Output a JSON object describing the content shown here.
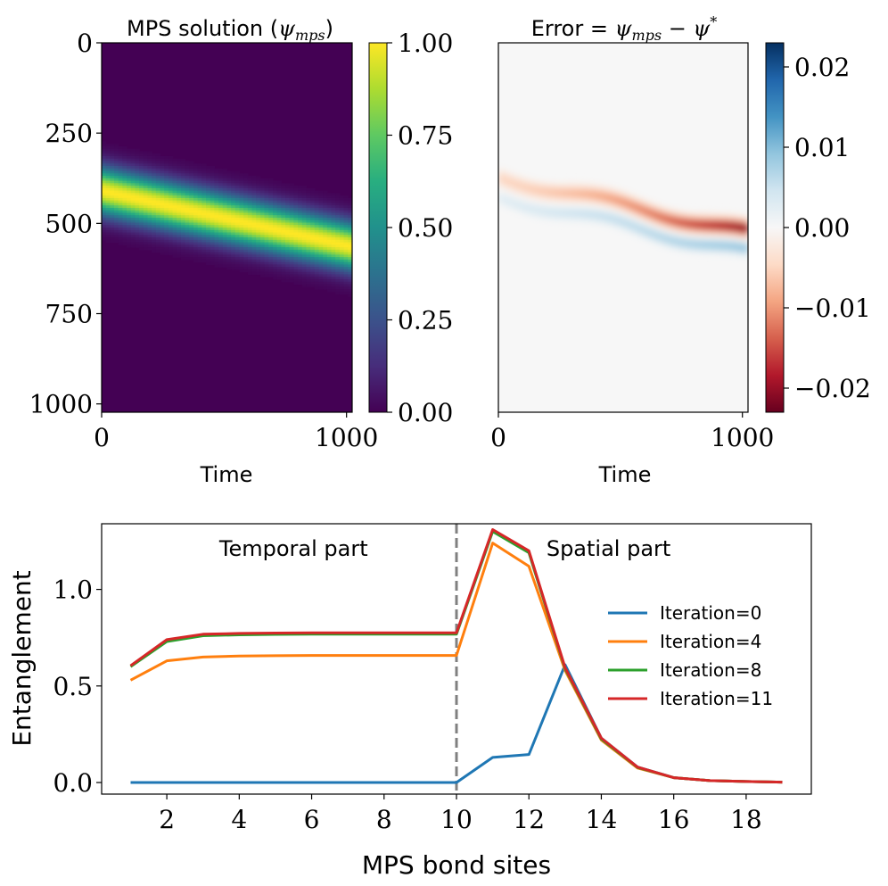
{
  "chart_data": [
    {
      "type": "heatmap",
      "title_prefix": "MPS solution (",
      "title_math": "ψ",
      "title_sub": "mps",
      "title_suffix": ")",
      "xlabel": "Time",
      "ylabel": "",
      "xlim": [
        0,
        1023
      ],
      "ylim": [
        1023,
        0
      ],
      "xticks": [
        0,
        1000
      ],
      "yticks": [
        0,
        250,
        500,
        750,
        1000
      ],
      "colormap": "viridis",
      "colorbar_range": [
        0,
        1
      ],
      "colorbar_ticks": [
        "0.00",
        "0.25",
        "0.50",
        "0.75",
        "1.00"
      ],
      "band": {
        "center_start": 410,
        "center_end": 565,
        "sigma": 45,
        "peak": 1.0
      }
    },
    {
      "type": "heatmap",
      "title_prefix": "Error = ",
      "title_math": "ψ",
      "title_sub": "mps",
      "title_mid": " − ψ",
      "title_sup": "*",
      "xlabel": "Time",
      "ylabel": "",
      "xlim": [
        0,
        1023
      ],
      "ylim": [
        1023,
        0
      ],
      "xticks": [
        0,
        1000
      ],
      "colormap": "RdBu",
      "colorbar_range": [
        -0.023,
        0.023
      ],
      "colorbar_ticks": [
        "0.02",
        "0.01",
        "0.00",
        "−0.01",
        "−0.02"
      ],
      "colorbar_tick_values": [
        0.02,
        0.01,
        0.0,
        -0.01,
        -0.02
      ],
      "error_min": -0.022,
      "error_max": 0.01
    },
    {
      "type": "line",
      "xlabel": "MPS bond sites",
      "ylabel": "Entanglement",
      "xlim": [
        0.2,
        19.8
      ],
      "ylim": [
        -0.06,
        1.34
      ],
      "xticks": [
        2,
        4,
        6,
        8,
        10,
        12,
        14,
        16,
        18
      ],
      "yticks": [
        0.0,
        0.5,
        1.0
      ],
      "ytick_labels": [
        "0.0",
        "0.5",
        "1.0"
      ],
      "vline_x": 10,
      "annotations": [
        {
          "text": "Temporal part",
          "x": 5.5,
          "y": 1.21
        },
        {
          "text": "Spatial part",
          "x": 14.2,
          "y": 1.21
        }
      ],
      "legend_placement": "center-right",
      "x": [
        1,
        2,
        3,
        4,
        5,
        6,
        7,
        8,
        9,
        10,
        11,
        12,
        13,
        14,
        15,
        16,
        17,
        18,
        19
      ],
      "series": [
        {
          "name": "Iteration=0",
          "color": "#1f77b4",
          "values": [
            0,
            0,
            0,
            0,
            0,
            0,
            0,
            0,
            0,
            0,
            0.13,
            0.145,
            0.61,
            0.23,
            0.08,
            0.025,
            0.01,
            0.005,
            0.002
          ]
        },
        {
          "name": "Iteration=4",
          "color": "#ff7f0e",
          "values": [
            0.53,
            0.63,
            0.65,
            0.655,
            0.657,
            0.658,
            0.658,
            0.658,
            0.658,
            0.658,
            1.24,
            1.12,
            0.58,
            0.22,
            0.075,
            0.025,
            0.01,
            0.005,
            0.002
          ]
        },
        {
          "name": "Iteration=8",
          "color": "#2ca02c",
          "values": [
            0.6,
            0.73,
            0.76,
            0.765,
            0.767,
            0.768,
            0.768,
            0.768,
            0.768,
            0.768,
            1.3,
            1.19,
            0.59,
            0.225,
            0.078,
            0.025,
            0.01,
            0.005,
            0.002
          ]
        },
        {
          "name": "Iteration=11",
          "color": "#d62728",
          "values": [
            0.605,
            0.74,
            0.768,
            0.772,
            0.774,
            0.775,
            0.775,
            0.775,
            0.775,
            0.775,
            1.31,
            1.2,
            0.595,
            0.23,
            0.08,
            0.025,
            0.01,
            0.005,
            0.002
          ]
        }
      ]
    }
  ]
}
